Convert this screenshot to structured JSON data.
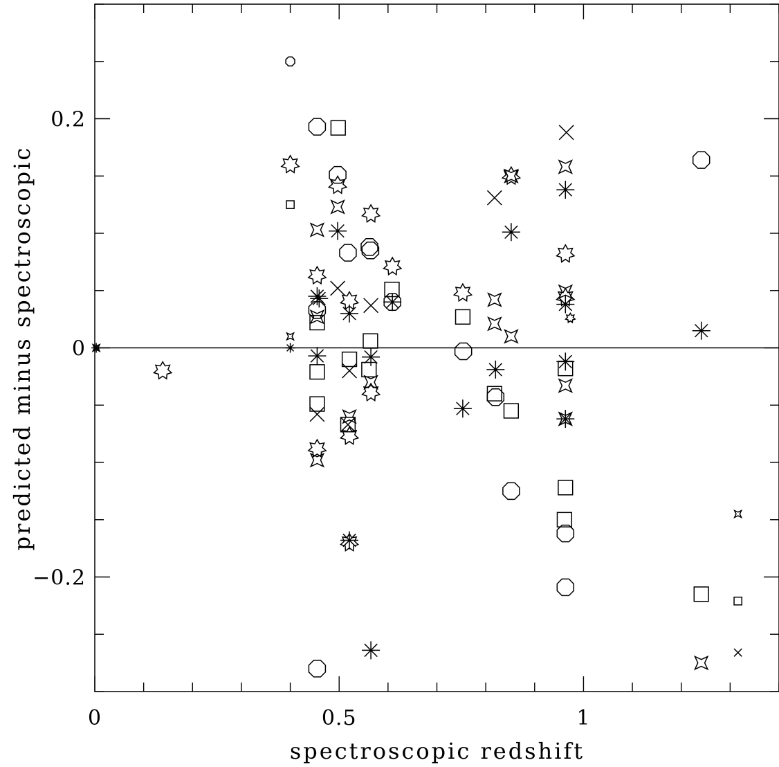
{
  "chart_data": {
    "type": "scatter",
    "xlabel": "spectroscopic redshift",
    "ylabel": "predicted minus spectroscopic",
    "xlim": [
      0,
      1.4
    ],
    "ylim": [
      -0.3,
      0.3
    ],
    "x_ticks": [
      {
        "value": 0,
        "label": "0"
      },
      {
        "value": 0.5,
        "label": "0.5"
      },
      {
        "value": 1,
        "label": "1"
      }
    ],
    "y_ticks": [
      {
        "value": -0.2,
        "label": "−0.2"
      },
      {
        "value": 0,
        "label": "0"
      },
      {
        "value": 0.2,
        "label": "0.2"
      }
    ],
    "x_minor_step": 0.1,
    "y_minor_step": 0.05,
    "reference_line": {
      "y": 0
    },
    "grid": false,
    "legend": "none",
    "color": "#000000",
    "series": [
      {
        "marker": "circle",
        "points": [
          [
            0.4,
            0.25
          ],
          [
            0.455,
            0.193
          ],
          [
            0.497,
            0.151
          ],
          [
            0.518,
            0.083
          ],
          [
            0.562,
            0.088
          ],
          [
            0.564,
            0.085
          ],
          [
            0.609,
            0.04
          ],
          [
            0.455,
            0.033
          ],
          [
            0.754,
            -0.003
          ],
          [
            0.82,
            -0.043
          ],
          [
            0.852,
            -0.125
          ],
          [
            0.963,
            -0.162
          ],
          [
            0.963,
            -0.209
          ],
          [
            0.455,
            -0.28
          ],
          [
            1.241,
            0.164
          ]
        ]
      },
      {
        "marker": "square",
        "points": [
          [
            0.4,
            0.125
          ],
          [
            0.498,
            0.192
          ],
          [
            0.608,
            0.051
          ],
          [
            0.455,
            0.022
          ],
          [
            0.455,
            -0.021
          ],
          [
            0.455,
            -0.049
          ],
          [
            0.521,
            -0.01
          ],
          [
            0.564,
            0.006
          ],
          [
            0.561,
            -0.019
          ],
          [
            0.518,
            -0.067
          ],
          [
            0.753,
            0.027
          ],
          [
            0.818,
            -0.04
          ],
          [
            0.852,
            -0.055
          ],
          [
            0.963,
            -0.018
          ],
          [
            0.963,
            -0.122
          ],
          [
            0.961,
            -0.15
          ],
          [
            1.241,
            -0.215
          ],
          [
            1.316,
            -0.221
          ]
        ]
      },
      {
        "marker": "x",
        "points": [
          [
            0.965,
            0.188
          ],
          [
            0.818,
            0.131
          ],
          [
            0.497,
            0.052
          ],
          [
            0.565,
            0.037
          ],
          [
            0.521,
            -0.02
          ],
          [
            0.455,
            -0.058
          ],
          [
            0.518,
            -0.067
          ],
          [
            1.316,
            -0.266
          ]
        ]
      },
      {
        "marker": "asterisk",
        "points": [
          [
            0.4,
            0.0
          ],
          [
            0.003,
            0.0
          ],
          [
            0.497,
            0.102
          ],
          [
            0.455,
            0.045
          ],
          [
            0.459,
            0.043
          ],
          [
            0.521,
            0.03
          ],
          [
            0.565,
            -0.008
          ],
          [
            0.455,
            -0.007
          ],
          [
            0.609,
            0.04
          ],
          [
            0.753,
            -0.053
          ],
          [
            0.82,
            -0.019
          ],
          [
            0.852,
            0.101
          ],
          [
            0.963,
            0.138
          ],
          [
            0.963,
            0.038
          ],
          [
            0.963,
            -0.012
          ],
          [
            0.963,
            -0.062
          ],
          [
            1.241,
            0.015
          ],
          [
            0.521,
            -0.168
          ],
          [
            0.565,
            -0.264
          ]
        ]
      },
      {
        "marker": "star6",
        "points": [
          [
            0.4,
            0.16
          ],
          [
            0.139,
            -0.02
          ],
          [
            0.497,
            0.142
          ],
          [
            0.565,
            0.117
          ],
          [
            0.609,
            0.071
          ],
          [
            0.455,
            0.063
          ],
          [
            0.521,
            0.041
          ],
          [
            0.753,
            0.048
          ],
          [
            0.852,
            0.15
          ],
          [
            0.963,
            0.082
          ],
          [
            0.963,
            0.044
          ],
          [
            0.973,
            0.026
          ],
          [
            0.455,
            -0.088
          ],
          [
            0.521,
            -0.077
          ],
          [
            0.565,
            -0.039
          ],
          [
            0.521,
            -0.17
          ]
        ]
      },
      {
        "marker": "star4",
        "points": [
          [
            0.4,
            0.01
          ],
          [
            0.455,
            0.103
          ],
          [
            0.497,
            0.123
          ],
          [
            0.455,
            0.027
          ],
          [
            0.565,
            -0.03
          ],
          [
            0.521,
            -0.06
          ],
          [
            0.455,
            -0.098
          ],
          [
            0.818,
            0.042
          ],
          [
            0.818,
            0.021
          ],
          [
            0.852,
            0.01
          ],
          [
            0.852,
            0.15
          ],
          [
            0.963,
            0.158
          ],
          [
            0.963,
            0.049
          ],
          [
            0.963,
            -0.033
          ],
          [
            0.963,
            -0.062
          ],
          [
            1.241,
            -0.275
          ],
          [
            1.316,
            -0.145
          ],
          [
            0.003,
            0.0
          ]
        ]
      }
    ]
  }
}
